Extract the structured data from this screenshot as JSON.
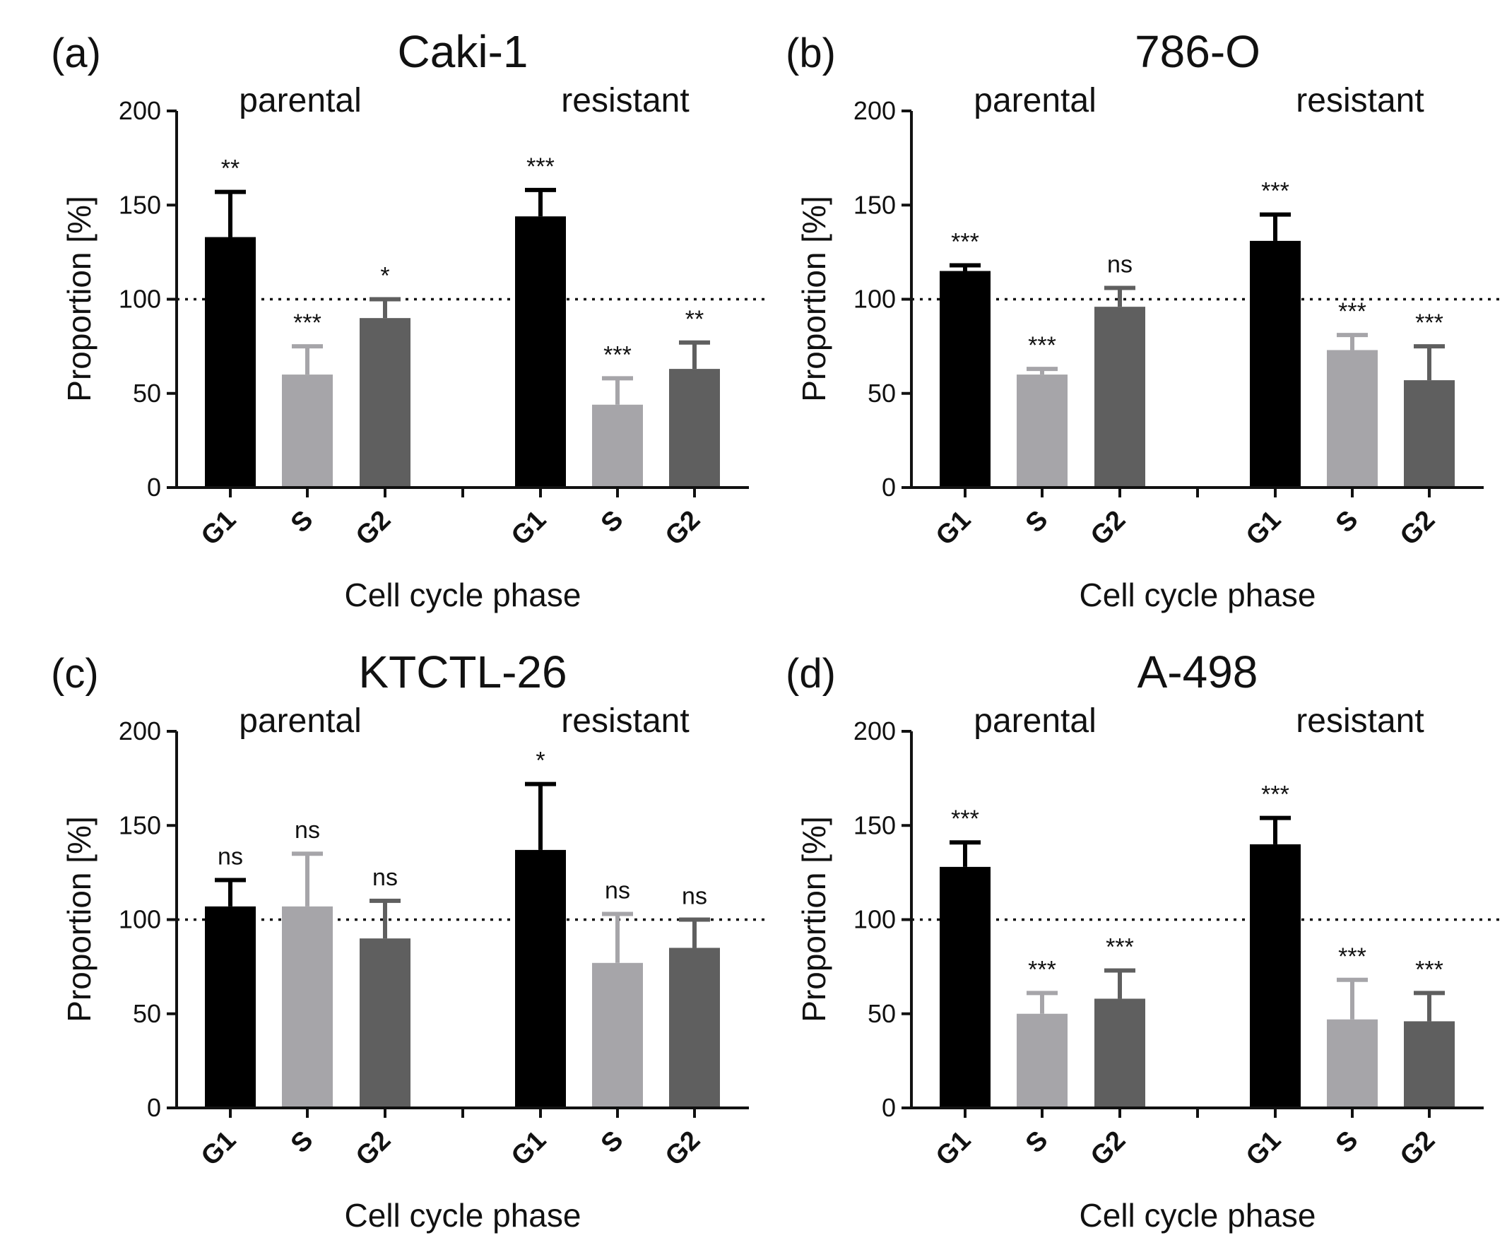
{
  "figure": {
    "colors": {
      "G1": "#000000",
      "S": "#a6a5a9",
      "G2": "#5f5f5f",
      "axis": "#111111"
    }
  },
  "chart_data": [
    {
      "type": "bar",
      "panel_label": "(a)",
      "title": "Caki-1",
      "groups": [
        "parental",
        "resistant"
      ],
      "categories": [
        "G1",
        "S",
        "G2",
        "G1",
        "S",
        "G2"
      ],
      "values": [
        133,
        60,
        90,
        144,
        44,
        63
      ],
      "errors": [
        24,
        15,
        10,
        14,
        14,
        14
      ],
      "significance": [
        "**",
        "***",
        "*",
        "***",
        "***",
        "**"
      ],
      "xlabel": "Cell cycle phase",
      "ylabel": "Proportion [%]",
      "yticks": [
        "0",
        "50",
        "100",
        "150",
        "200"
      ],
      "ylim": [
        0,
        200
      ],
      "reference_line": 100
    },
    {
      "type": "bar",
      "panel_label": "(b)",
      "title": "786-O",
      "groups": [
        "parental",
        "resistant"
      ],
      "categories": [
        "G1",
        "S",
        "G2",
        "G1",
        "S",
        "G2"
      ],
      "values": [
        115,
        60,
        96,
        131,
        73,
        57
      ],
      "errors": [
        3,
        3,
        10,
        14,
        8,
        18
      ],
      "significance": [
        "***",
        "***",
        "ns",
        "***",
        "***",
        "***"
      ],
      "xlabel": "Cell cycle phase",
      "ylabel": "Proportion [%]",
      "yticks": [
        "0",
        "50",
        "100",
        "150",
        "200"
      ],
      "ylim": [
        0,
        200
      ],
      "reference_line": 100
    },
    {
      "type": "bar",
      "panel_label": "(c)",
      "title": "KTCTL-26",
      "groups": [
        "parental",
        "resistant"
      ],
      "categories": [
        "G1",
        "S",
        "G2",
        "G1",
        "S",
        "G2"
      ],
      "values": [
        107,
        107,
        90,
        137,
        77,
        85
      ],
      "errors": [
        14,
        28,
        20,
        35,
        26,
        15
      ],
      "significance": [
        "ns",
        "ns",
        "ns",
        "*",
        "ns",
        "ns"
      ],
      "xlabel": "Cell cycle phase",
      "ylabel": "Proportion [%]",
      "yticks": [
        "0",
        "50",
        "100",
        "150",
        "200"
      ],
      "ylim": [
        0,
        200
      ],
      "reference_line": 100
    },
    {
      "type": "bar",
      "panel_label": "(d)",
      "title": "A-498",
      "groups": [
        "parental",
        "resistant"
      ],
      "categories": [
        "G1",
        "S",
        "G2",
        "G1",
        "S",
        "G2"
      ],
      "values": [
        128,
        50,
        58,
        140,
        47,
        46
      ],
      "errors": [
        13,
        11,
        15,
        14,
        21,
        15
      ],
      "significance": [
        "***",
        "***",
        "***",
        "***",
        "***",
        "***"
      ],
      "xlabel": "Cell cycle phase",
      "ylabel": "Proportion [%]",
      "yticks": [
        "0",
        "50",
        "100",
        "150",
        "200"
      ],
      "ylim": [
        0,
        200
      ],
      "reference_line": 100
    }
  ]
}
